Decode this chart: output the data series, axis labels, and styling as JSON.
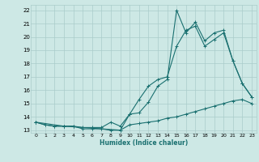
{
  "xlabel": "Humidex (Indice chaleur)",
  "xlim": [
    -0.5,
    23.5
  ],
  "ylim": [
    12.8,
    22.4
  ],
  "yticks": [
    13,
    14,
    15,
    16,
    17,
    18,
    19,
    20,
    21,
    22
  ],
  "xticks": [
    0,
    1,
    2,
    3,
    4,
    5,
    6,
    7,
    8,
    9,
    10,
    11,
    12,
    13,
    14,
    15,
    16,
    17,
    18,
    19,
    20,
    21,
    22,
    23
  ],
  "background_color": "#cde8e5",
  "grid_color": "#aaccca",
  "line_color": "#1a7070",
  "line1_x": [
    0,
    1,
    2,
    3,
    4,
    5,
    6,
    7,
    8,
    9,
    10,
    11,
    12,
    13,
    14,
    15,
    16,
    17,
    18,
    19,
    20,
    21,
    22,
    23
  ],
  "line1_y": [
    13.6,
    13.4,
    13.3,
    13.3,
    13.3,
    13.1,
    13.1,
    13.1,
    13.0,
    13.0,
    13.4,
    13.5,
    13.6,
    13.7,
    13.9,
    14.0,
    14.2,
    14.4,
    14.6,
    14.8,
    15.0,
    15.2,
    15.3,
    15.0
  ],
  "line2_x": [
    0,
    1,
    2,
    3,
    4,
    5,
    6,
    7,
    8,
    9,
    10,
    11,
    12,
    13,
    14,
    15,
    16,
    17,
    18,
    19,
    20,
    21,
    22,
    23
  ],
  "line2_y": [
    13.6,
    13.4,
    13.3,
    13.3,
    13.3,
    13.2,
    13.2,
    13.2,
    13.6,
    13.3,
    14.2,
    15.3,
    16.3,
    16.8,
    17.0,
    19.3,
    20.5,
    20.8,
    19.3,
    19.8,
    20.3,
    18.2,
    16.5,
    15.5
  ],
  "line3_x": [
    0,
    3,
    9,
    10,
    11,
    12,
    13,
    14,
    15,
    16,
    17,
    18,
    19,
    20,
    21,
    22,
    23
  ],
  "line3_y": [
    13.6,
    13.3,
    13.0,
    14.2,
    14.3,
    15.1,
    16.3,
    16.8,
    22.0,
    20.3,
    21.1,
    19.7,
    20.3,
    20.5,
    18.2,
    16.5,
    15.5
  ]
}
